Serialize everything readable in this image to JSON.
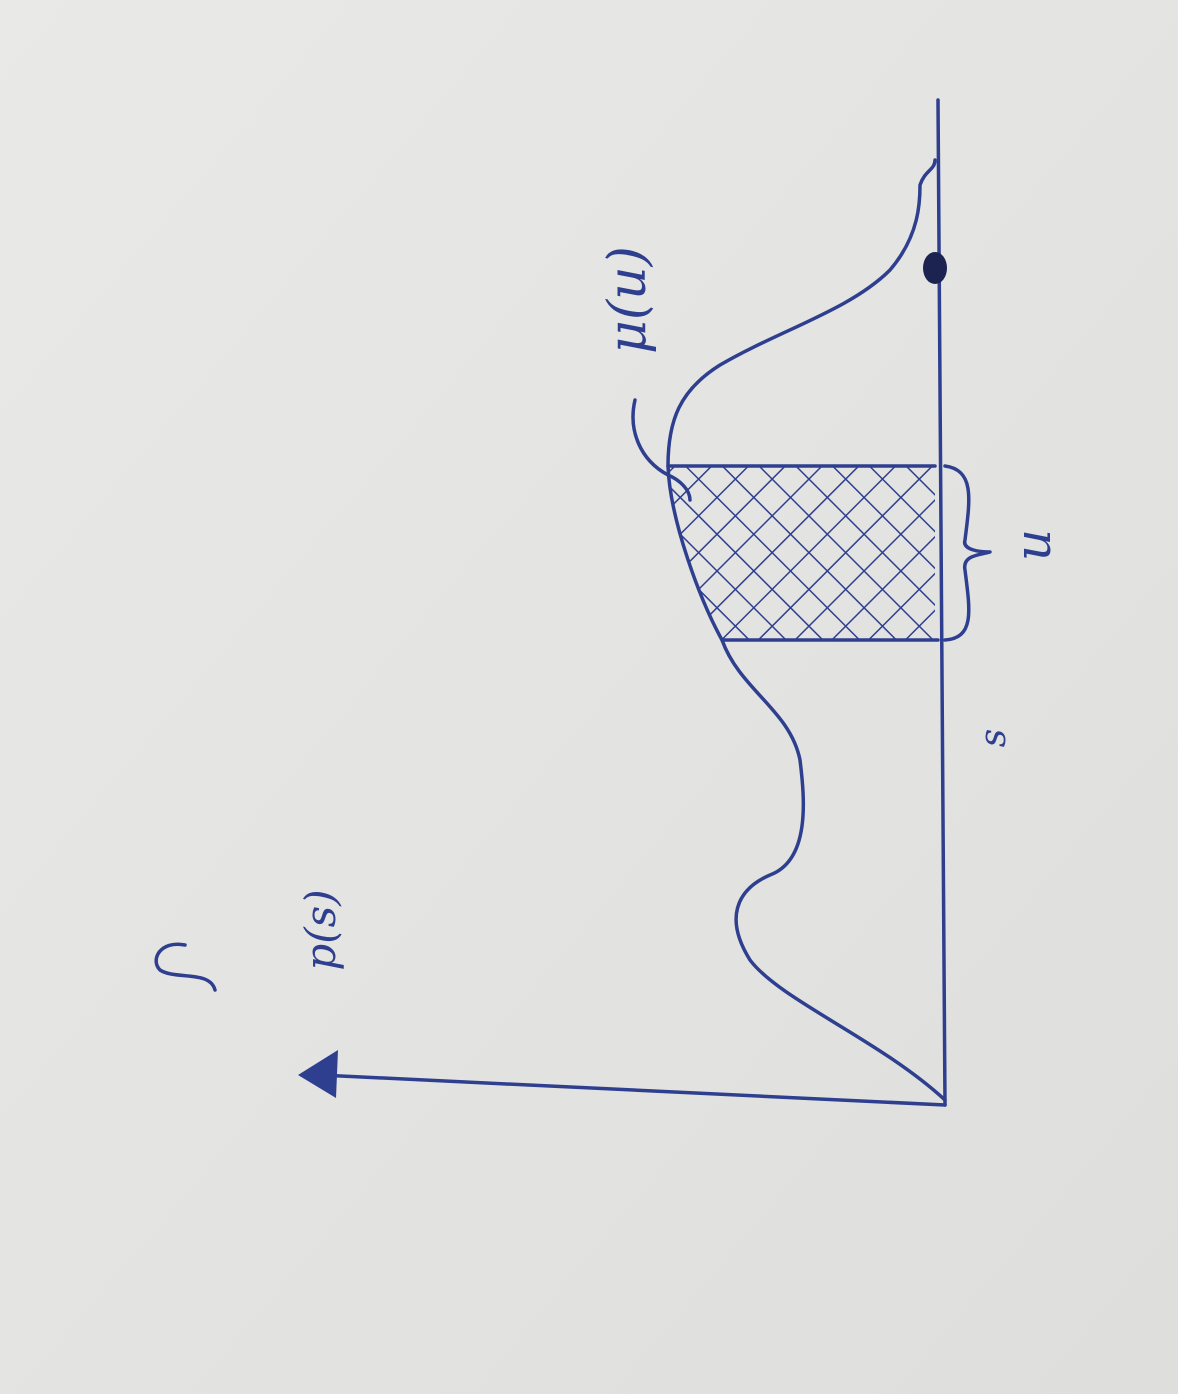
{
  "labels": {
    "y_axis": "p(s)",
    "x_axis": "s",
    "mu": "μ(u)",
    "interval": "u"
  }
}
